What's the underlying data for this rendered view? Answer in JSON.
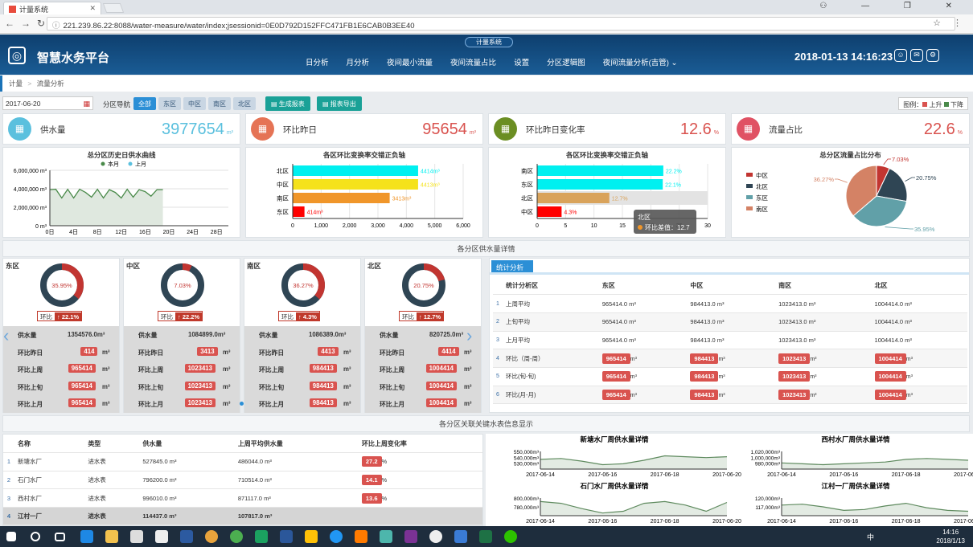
{
  "browser": {
    "tab_title": "计量系统",
    "url": "221.239.86.22:8088/water-measure/water/index;jsessionid=0E0D792D152FFC471FB1E6CAB0B3EE40",
    "window_controls": "⚇ — ❐ ✕"
  },
  "header": {
    "system_name": "计量系统",
    "brand": "智慧水务平台",
    "nav": [
      "日分析",
      "月分析",
      "夜间最小流量",
      "夜间流量占比",
      "设置",
      "分区逻辑图",
      "夜间流量分析(吉管) ⌄"
    ],
    "datetime": "2018-01-13 14:16:23"
  },
  "breadcrumb": {
    "root": "计量",
    "sep": ">",
    "current": "流量分析"
  },
  "filter": {
    "date": "2017-06-20",
    "region_label": "分区导航",
    "regions": [
      "全部",
      "东区",
      "中区",
      "南区",
      "北区"
    ],
    "active_region": "全部",
    "generate_label": "生成报表",
    "export_label": "报表导出",
    "legend_prefix": "图例：",
    "legend_up": "上升",
    "legend_down": "下降",
    "up_color": "#d9534f",
    "down_color": "#4a8a4a"
  },
  "kpis": [
    {
      "label": "供水量",
      "value": "3977654",
      "unit": "m³",
      "color": "#5bc0de",
      "icon": "monitor-chart-icon"
    },
    {
      "label": "环比昨日",
      "value": "95654",
      "unit": "m³",
      "color": "#e57355",
      "icon": "monitor-chart-icon"
    },
    {
      "label": "环比昨日变化率",
      "value": "12.6",
      "unit": "%",
      "color": "#6b8e23",
      "icon": "monitor-chart-icon"
    },
    {
      "label": "流量占比",
      "value": "22.6",
      "unit": "%",
      "color": "#e05264",
      "icon": "monitor-chart-icon"
    }
  ],
  "chart_data": [
    {
      "type": "area",
      "title": "总分区历史日供水曲线",
      "legend": [
        "本月",
        "上月"
      ],
      "series_colors": [
        "#4a8a4a",
        "#5bc0de"
      ],
      "x_ticks": [
        "0日",
        "4日",
        "8日",
        "12日",
        "16日",
        "20日",
        "24日",
        "28日"
      ],
      "y_ticks": [
        "0 m³",
        "2,000,000 m³",
        "4,000,000 m³",
        "6,000,000 m³"
      ],
      "ylim": [
        0,
        6000000
      ],
      "xlim": [
        0,
        30
      ],
      "series": [
        {
          "name": "本月",
          "x": [
            0,
            1,
            2,
            3,
            4,
            5,
            6,
            7,
            8,
            9,
            10,
            11,
            12,
            13,
            14,
            15,
            16,
            17,
            18,
            19
          ],
          "y": [
            3900000,
            3950000,
            3000000,
            3950000,
            3000000,
            3950000,
            3600000,
            3100000,
            3950000,
            3000000,
            3900000,
            3600000,
            3000000,
            3950000,
            3100000,
            3900000,
            3700000,
            3200000,
            3900000,
            3900000
          ]
        }
      ]
    },
    {
      "type": "bar",
      "orientation": "horizontal",
      "title": "各区环比变换率交错正负轴",
      "categories": [
        "北区",
        "中区",
        "南区",
        "东区"
      ],
      "values": [
        4414,
        4413,
        3413,
        414
      ],
      "labels": [
        "4414m³",
        "4413m³",
        "3413m³",
        "414m³"
      ],
      "colors": [
        "#00f0f0",
        "#f5e21b",
        "#f0962a",
        "#ff0000"
      ],
      "x_ticks": [
        "0",
        "1,000",
        "2,000",
        "3,000",
        "4,000",
        "5,000",
        "6,000"
      ],
      "xlim": [
        0,
        6000
      ]
    },
    {
      "type": "bar",
      "orientation": "horizontal",
      "title": "各区环比变换率交错正负轴",
      "categories": [
        "南区",
        "东区",
        "北区",
        "中区"
      ],
      "values": [
        22.2,
        22.1,
        12.7,
        4.3
      ],
      "labels": [
        "22.2%",
        "22.1%",
        "12.7%",
        "4.3%"
      ],
      "colors": [
        "#00f0f0",
        "#00f0f0",
        "#d9a35b",
        "#ff0000"
      ],
      "x_ticks": [
        "0",
        "5",
        "10",
        "15",
        "20",
        "25",
        "30"
      ],
      "xlim": [
        0,
        30
      ],
      "tooltip": {
        "title": "北区",
        "text": "环比差值：12.7"
      }
    },
    {
      "type": "pie",
      "title": "总分区流量占比分布",
      "categories": [
        "中区",
        "北区",
        "东区",
        "南区"
      ],
      "values": [
        7.03,
        20.75,
        35.95,
        36.27
      ],
      "labels": [
        "7.03%",
        "20.75%",
        "35.95%",
        "36.27%"
      ],
      "colors": [
        "#c23531",
        "#2f4554",
        "#61a0a8",
        "#d48265"
      ]
    }
  ],
  "section1_title": "各分区供水量详情",
  "districts": [
    {
      "name": "东区",
      "ratio": 35.95,
      "ratio_label": "35.95%",
      "hb_label": "环比",
      "hb_value": "22.1%",
      "rows": [
        {
          "k": "供水量",
          "v": "1354576.0m³"
        },
        {
          "k": "环比昨日",
          "p": "414",
          "u": "m³"
        },
        {
          "k": "环比上周",
          "p": "965414",
          "u": "m³"
        },
        {
          "k": "环比上旬",
          "p": "965414",
          "u": "m³"
        },
        {
          "k": "环比上月",
          "p": "965414",
          "u": "m³"
        }
      ]
    },
    {
      "name": "中区",
      "ratio": 7.03,
      "ratio_label": "7.03%",
      "hb_label": "环比",
      "hb_value": "22.2%",
      "rows": [
        {
          "k": "供水量",
          "v": "1084899.0m³"
        },
        {
          "k": "环比昨日",
          "p": "3413",
          "u": "m³"
        },
        {
          "k": "环比上周",
          "p": "1023413",
          "u": "m³"
        },
        {
          "k": "环比上旬",
          "p": "1023413",
          "u": "m³"
        },
        {
          "k": "环比上月",
          "p": "1023413",
          "u": "m³"
        }
      ]
    },
    {
      "name": "南区",
      "ratio": 36.27,
      "ratio_label": "36.27%",
      "hb_label": "环比",
      "hb_value": "4.3%",
      "rows": [
        {
          "k": "供水量",
          "v": "1086389.0m³"
        },
        {
          "k": "环比昨日",
          "p": "4413",
          "u": "m³"
        },
        {
          "k": "环比上周",
          "p": "984413",
          "u": "m³"
        },
        {
          "k": "环比上旬",
          "p": "984413",
          "u": "m³"
        },
        {
          "k": "环比上月",
          "p": "984413",
          "u": "m³"
        }
      ]
    },
    {
      "name": "北区",
      "ratio": 20.75,
      "ratio_label": "20.75%",
      "hb_label": "环比",
      "hb_value": "12.7%",
      "rows": [
        {
          "k": "供水量",
          "v": "820725.0m³"
        },
        {
          "k": "环比昨日",
          "p": "4414",
          "u": "m³"
        },
        {
          "k": "环比上周",
          "p": "1004414",
          "u": "m³"
        },
        {
          "k": "环比上旬",
          "p": "1004414",
          "u": "m³"
        },
        {
          "k": "环比上月",
          "p": "1004414",
          "u": "m³"
        }
      ]
    }
  ],
  "stats": {
    "tab": "统计分析",
    "headers": [
      "统计分析区",
      "东区",
      "中区",
      "南区",
      "北区"
    ],
    "rows": [
      {
        "n": "1",
        "label": "上周平均",
        "cells": [
          "965414.0 m³",
          "984413.0 m³",
          "1023413.0 m³",
          "1004414.0 m³"
        ],
        "pill": false
      },
      {
        "n": "2",
        "label": "上旬平均",
        "cells": [
          "965414.0 m³",
          "984413.0 m³",
          "1023413.0 m³",
          "1004414.0 m³"
        ],
        "pill": false
      },
      {
        "n": "3",
        "label": "上月平均",
        "cells": [
          "965414.0 m³",
          "984413.0 m³",
          "1023413.0 m³",
          "1004414.0 m³"
        ],
        "pill": false
      },
      {
        "n": "4",
        "label": "环比（周-周）",
        "cells": [
          "965414",
          "984413",
          "1023413",
          "1004414"
        ],
        "pill": true
      },
      {
        "n": "5",
        "label": "环比(旬-旬)",
        "cells": [
          "965414",
          "984413",
          "1023413",
          "1004414"
        ],
        "pill": true
      },
      {
        "n": "6",
        "label": "环比(月-月)",
        "cells": [
          "965414",
          "984413",
          "1023413",
          "1004414"
        ],
        "pill": true
      }
    ],
    "unit": "m³"
  },
  "section2_title": "各分区关联关键水表信息显示",
  "meters": {
    "headers": [
      "名称",
      "类型",
      "供水量",
      "上周平均供水量",
      "环比上周变化率"
    ],
    "rows": [
      {
        "n": "1",
        "name": "新塘水厂",
        "type": "进水表",
        "supply": "527845.0 m³",
        "avg": "486044.0 m³",
        "rate": "27.2",
        "hl": false
      },
      {
        "n": "2",
        "name": "石门水厂",
        "type": "进水表",
        "supply": "796200.0 m³",
        "avg": "710514.0 m³",
        "rate": "14.1",
        "hl": false
      },
      {
        "n": "3",
        "name": "西村水厂",
        "type": "进水表",
        "supply": "996010.0 m³",
        "avg": "871117.0 m³",
        "rate": "13.6",
        "hl": false
      },
      {
        "n": "4",
        "name": "江村一厂",
        "type": "进水表",
        "supply": "114437.0 m³",
        "avg": "107817.0 m³",
        "rate": "",
        "hl": true
      }
    ],
    "pct": "%"
  },
  "mini_charts": [
    {
      "title": "新塘水厂周供水量详情",
      "y_ticks": [
        "550,000m³",
        "540,000m³",
        "530,000m³"
      ],
      "x_ticks": [
        "2017-06-14",
        "2017-06-16",
        "2017-06-18",
        "2017-06-20"
      ]
    },
    {
      "title": "西村水厂周供水量详情",
      "y_ticks": [
        "1,020,000m³",
        "1,000,000m³",
        "980,000m³"
      ],
      "x_ticks": [
        "2017-06-14",
        "2017-06-16",
        "2017-06-18",
        "2017-06-20"
      ]
    },
    {
      "title": "石门水厂周供水量详情",
      "y_ticks": [
        "800,000m³",
        "780,000m³"
      ],
      "x_ticks": [
        "2017-06-14",
        "2017-06-16",
        "2017-06-18",
        "2017-06-20"
      ]
    },
    {
      "title": "江村一厂周供水量详情",
      "y_ticks": [
        "120,000m³",
        "117,000m³"
      ],
      "x_ticks": [
        "2017-06-14",
        "2017-06-16",
        "2017-06-18",
        "2017-06-20"
      ]
    }
  ],
  "taskbar": {
    "time": "14:16",
    "date": "2018/1/13",
    "ime": "中"
  }
}
